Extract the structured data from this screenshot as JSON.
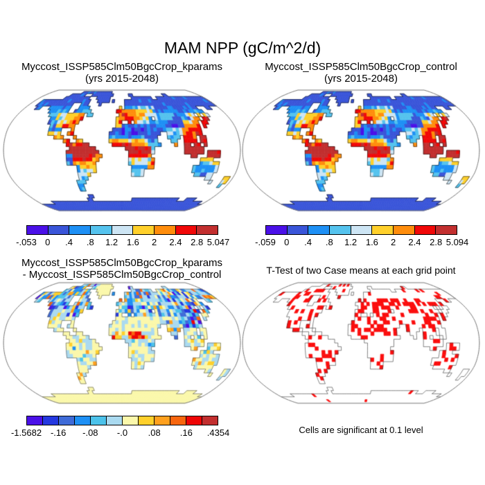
{
  "page": {
    "background": "#ffffff"
  },
  "main_title": "MAM NPP (gC/m^2/d)",
  "panels": {
    "kparams": {
      "title_line1": "Myccost_ISSP585Clm50BgcCrop_kparams",
      "title_line2": "(yrs 2015-2048)"
    },
    "control": {
      "title_line1": "Myccost_ISSP585Clm50BgcCrop_control",
      "title_line2": "(yrs 2015-2048)"
    },
    "diff": {
      "title_line1": "Myccost_ISSP585Clm50BgcCrop_kparams",
      "title_line2": "- Myccost_ISSP585Clm50BgcCrop_control"
    },
    "ttest": {
      "title": "T-Test of two Case means at each grid point",
      "caption": "Cells are significant at 0.1 level"
    }
  },
  "chart_data": {
    "type": "heatmap",
    "projection": "robinson",
    "season": "MAM",
    "variable": "NPP",
    "units": "gC/m^2/d",
    "panels": [
      {
        "id": "kparams",
        "kind": "filled_global_map",
        "map_title": "Myccost_ISSP585Clm50BgcCrop_kparams (yrs 2015-2048)",
        "levels": [
          -0.053,
          0,
          0.4,
          0.8,
          1.2,
          1.6,
          2.0,
          2.4,
          2.8,
          5.047
        ],
        "level_labels": [
          "-.053",
          "0",
          ".4",
          ".8",
          "1.2",
          "1.6",
          "2",
          "2.4",
          "2.8",
          "5.047"
        ],
        "label_positions": [
          0,
          1,
          2,
          3,
          4,
          5,
          6,
          7,
          8,
          9
        ],
        "colors": [
          "#4a10e8",
          "#3a55d9",
          "#1e90f5",
          "#55c3ee",
          "#cde5f4",
          "#ffd02b",
          "#ff8d0c",
          "#f10808",
          "#c22f2f"
        ]
      },
      {
        "id": "control",
        "kind": "filled_global_map",
        "map_title": "Myccost_ISSP585Clm50BgcCrop_control (yrs 2015-2048)",
        "levels": [
          -0.059,
          0,
          0.4,
          0.8,
          1.2,
          1.6,
          2.0,
          2.4,
          2.8,
          5.094
        ],
        "level_labels": [
          "-.059",
          "0",
          ".4",
          ".8",
          "1.2",
          "1.6",
          "2",
          "2.4",
          "2.8",
          "5.094"
        ],
        "label_positions": [
          0,
          1,
          2,
          3,
          4,
          5,
          6,
          7,
          8,
          9
        ],
        "colors": [
          "#4a10e8",
          "#3a55d9",
          "#1e90f5",
          "#55c3ee",
          "#cde5f4",
          "#ffd02b",
          "#ff8d0c",
          "#f10808",
          "#c22f2f"
        ]
      },
      {
        "id": "diff",
        "kind": "filled_global_map_difference",
        "map_title": "Myccost_ISSP585Clm50BgcCrop_kparams - Myccost_ISSP585Clm50BgcCrop_control",
        "levels": [
          -1.5682,
          -0.2,
          -0.16,
          -0.12,
          -0.08,
          -0.04,
          0,
          0.04,
          0.08,
          0.12,
          0.16,
          0.2,
          0.4354
        ],
        "level_labels": [
          "-1.5682",
          "-.16",
          "-.08",
          "-.0",
          ".08",
          ".16",
          ".4354"
        ],
        "label_positions": [
          0,
          2,
          4,
          6,
          8,
          10,
          12
        ],
        "colors": [
          "#4a10e8",
          "#2438e0",
          "#3f6bd8",
          "#1e90f5",
          "#4cc2ea",
          "#aadaf0",
          "#fbf8ab",
          "#ffd02b",
          "#ffa01e",
          "#f8660e",
          "#ee0505",
          "#c22f2f"
        ]
      },
      {
        "id": "ttest",
        "kind": "significance_map",
        "map_title": "T-Test of two Case means at each grid point",
        "note": "Cells are significant at 0.1 level",
        "significant_color": "#fb0d0d"
      }
    ]
  },
  "map_render": {
    "cols": 72,
    "rows": 36,
    "cell_deg": 5,
    "ocean_color": "#ffffff",
    "coast_colors": {
      "kparams": "#111111",
      "control": "#111111",
      "diff": "#4a4a4a",
      "ttest": "#333333"
    },
    "boundary_color": "#777777",
    "land_segments": [
      [
        1,
        16,
        30,
        1
      ],
      [
        2,
        12,
        18,
        1
      ],
      [
        2,
        22,
        31,
        1
      ],
      [
        2,
        39,
        40,
        1
      ],
      [
        2,
        55,
        56,
        1
      ],
      [
        3,
        11,
        21,
        1
      ],
      [
        3,
        25,
        30,
        1
      ],
      [
        3,
        40,
        48,
        1
      ],
      [
        3,
        51,
        71,
        1
      ],
      [
        4,
        3,
        22,
        1
      ],
      [
        4,
        26,
        30,
        1
      ],
      [
        4,
        32,
        32,
        1
      ],
      [
        4,
        37,
        71,
        1
      ],
      [
        5,
        3,
        16,
        1
      ],
      [
        5,
        20,
        22,
        1
      ],
      [
        5,
        27,
        27,
        1
      ],
      [
        5,
        37,
        71,
        1
      ],
      [
        6,
        4,
        5,
        1
      ],
      [
        6,
        9,
        16,
        2
      ],
      [
        6,
        20,
        23,
        2
      ],
      [
        6,
        35,
        35,
        5
      ],
      [
        6,
        37,
        41,
        2
      ],
      [
        6,
        42,
        47,
        3
      ],
      [
        6,
        48,
        63,
        1
      ],
      [
        6,
        67,
        68,
        1
      ],
      [
        7,
        10,
        16,
        2
      ],
      [
        7,
        19,
        24,
        2
      ],
      [
        7,
        34,
        41,
        6
      ],
      [
        7,
        42,
        46,
        5
      ],
      [
        7,
        47,
        64,
        2
      ],
      [
        8,
        11,
        12,
        3
      ],
      [
        8,
        13,
        16,
        4
      ],
      [
        8,
        17,
        20,
        5
      ],
      [
        8,
        21,
        22,
        6
      ],
      [
        8,
        24,
        25,
        3
      ],
      [
        8,
        35,
        37,
        7
      ],
      [
        8,
        38,
        40,
        6
      ],
      [
        8,
        41,
        43,
        5
      ],
      [
        8,
        44,
        47,
        4
      ],
      [
        8,
        48,
        53,
        3
      ],
      [
        8,
        54,
        57,
        2
      ],
      [
        8,
        58,
        60,
        4
      ],
      [
        8,
        62,
        62,
        4
      ],
      [
        8,
        64,
        65,
        5
      ],
      [
        9,
        12,
        13,
        2
      ],
      [
        9,
        14,
        16,
        4
      ],
      [
        9,
        17,
        19,
        5
      ],
      [
        9,
        20,
        22,
        6
      ],
      [
        9,
        34,
        36,
        6
      ],
      [
        9,
        37,
        39,
        7
      ],
      [
        9,
        40,
        41,
        6
      ],
      [
        9,
        42,
        44,
        5
      ],
      [
        9,
        45,
        45,
        2
      ],
      [
        9,
        47,
        52,
        3
      ],
      [
        9,
        53,
        55,
        1
      ],
      [
        9,
        56,
        58,
        2
      ],
      [
        9,
        59,
        60,
        5
      ],
      [
        9,
        61,
        61,
        6
      ],
      [
        9,
        63,
        64,
        7
      ],
      [
        10,
        12,
        14,
        2
      ],
      [
        10,
        15,
        17,
        4
      ],
      [
        10,
        18,
        21,
        6
      ],
      [
        10,
        34,
        35,
        6
      ],
      [
        10,
        38,
        38,
        6
      ],
      [
        10,
        40,
        40,
        6
      ],
      [
        10,
        41,
        44,
        4
      ],
      [
        10,
        45,
        47,
        2
      ],
      [
        10,
        48,
        50,
        2
      ],
      [
        10,
        51,
        55,
        1
      ],
      [
        10,
        56,
        58,
        5
      ],
      [
        10,
        59,
        60,
        6
      ],
      [
        10,
        62,
        63,
        7
      ],
      [
        11,
        13,
        14,
        2
      ],
      [
        11,
        15,
        16,
        5
      ],
      [
        11,
        17,
        20,
        6
      ],
      [
        11,
        34,
        35,
        5
      ],
      [
        11,
        36,
        37,
        2
      ],
      [
        11,
        38,
        46,
        1
      ],
      [
        11,
        47,
        50,
        2
      ],
      [
        11,
        51,
        55,
        1
      ],
      [
        11,
        56,
        59,
        6
      ],
      [
        11,
        60,
        60,
        7
      ],
      [
        11,
        62,
        62,
        7
      ],
      [
        12,
        13,
        16,
        2
      ],
      [
        12,
        20,
        20,
        7
      ],
      [
        12,
        33,
        48,
        1
      ],
      [
        12,
        49,
        50,
        2
      ],
      [
        12,
        51,
        53,
        3
      ],
      [
        12,
        54,
        54,
        4
      ],
      [
        12,
        55,
        56,
        6
      ],
      [
        12,
        57,
        60,
        7
      ],
      [
        13,
        13,
        16,
        5
      ],
      [
        13,
        19,
        20,
        6
      ],
      [
        13,
        32,
        47,
        1
      ],
      [
        13,
        50,
        53,
        3
      ],
      [
        13,
        54,
        54,
        4
      ],
      [
        13,
        55,
        55,
        6
      ],
      [
        13,
        56,
        60,
        7
      ],
      [
        14,
        15,
        17,
        6
      ],
      [
        14,
        21,
        21,
        6
      ],
      [
        14,
        32,
        43,
        2
      ],
      [
        14,
        44,
        46,
        1
      ],
      [
        14,
        50,
        53,
        3
      ],
      [
        14,
        55,
        58,
        7
      ],
      [
        14,
        60,
        61,
        8
      ],
      [
        15,
        18,
        19,
        7
      ],
      [
        15,
        22,
        23,
        6
      ],
      [
        15,
        32,
        40,
        5
      ],
      [
        15,
        41,
        43,
        4
      ],
      [
        15,
        44,
        46,
        2
      ],
      [
        15,
        51,
        52,
        3
      ],
      [
        15,
        55,
        58,
        7
      ],
      [
        15,
        60,
        61,
        8
      ],
      [
        16,
        19,
        20,
        8
      ],
      [
        16,
        21,
        23,
        7
      ],
      [
        16,
        24,
        25,
        8
      ],
      [
        16,
        33,
        38,
        7
      ],
      [
        16,
        39,
        43,
        6
      ],
      [
        16,
        44,
        46,
        3
      ],
      [
        16,
        47,
        47,
        2
      ],
      [
        16,
        52,
        52,
        7
      ],
      [
        16,
        55,
        56,
        8
      ],
      [
        16,
        58,
        59,
        8
      ],
      [
        16,
        61,
        61,
        8
      ],
      [
        17,
        20,
        27,
        8
      ],
      [
        17,
        37,
        44,
        8
      ],
      [
        17,
        45,
        45,
        3
      ],
      [
        17,
        55,
        60,
        8
      ],
      [
        18,
        19,
        28,
        8
      ],
      [
        18,
        38,
        44,
        8
      ],
      [
        18,
        45,
        45,
        4
      ],
      [
        18,
        55,
        60,
        8
      ],
      [
        18,
        62,
        65,
        8
      ],
      [
        19,
        19,
        20,
        2
      ],
      [
        19,
        21,
        27,
        8
      ],
      [
        19,
        28,
        29,
        6
      ],
      [
        19,
        38,
        44,
        7
      ],
      [
        19,
        57,
        58,
        8
      ],
      [
        19,
        62,
        65,
        8
      ],
      [
        20,
        19,
        20,
        2
      ],
      [
        20,
        21,
        26,
        7
      ],
      [
        20,
        27,
        28,
        6
      ],
      [
        20,
        38,
        44,
        4
      ],
      [
        20,
        45,
        45,
        6
      ],
      [
        20,
        60,
        63,
        5
      ],
      [
        21,
        19,
        20,
        2
      ],
      [
        21,
        21,
        27,
        6
      ],
      [
        21,
        38,
        43,
        4
      ],
      [
        21,
        44,
        45,
        6
      ],
      [
        21,
        60,
        62,
        3
      ],
      [
        21,
        63,
        65,
        5
      ],
      [
        22,
        22,
        22,
        1
      ],
      [
        22,
        23,
        27,
        5
      ],
      [
        22,
        39,
        43,
        2
      ],
      [
        22,
        44,
        45,
        6
      ],
      [
        22,
        58,
        64,
        2
      ],
      [
        22,
        65,
        65,
        4
      ],
      [
        23,
        22,
        22,
        2
      ],
      [
        23,
        23,
        26,
        4
      ],
      [
        23,
        27,
        27,
        5
      ],
      [
        23,
        39,
        42,
        3
      ],
      [
        23,
        58,
        64,
        2
      ],
      [
        23,
        65,
        65,
        4
      ],
      [
        24,
        22,
        22,
        3
      ],
      [
        24,
        23,
        25,
        4
      ],
      [
        24,
        39,
        42,
        3
      ],
      [
        24,
        59,
        60,
        3
      ],
      [
        24,
        61,
        62,
        1
      ],
      [
        24,
        63,
        64,
        4
      ],
      [
        25,
        22,
        24,
        3
      ],
      [
        25,
        63,
        64,
        4
      ],
      [
        25,
        69,
        70,
        4
      ],
      [
        26,
        21,
        23,
        3
      ],
      [
        26,
        65,
        65,
        4
      ],
      [
        26,
        69,
        70,
        4
      ],
      [
        27,
        21,
        22,
        2
      ],
      [
        27,
        69,
        69,
        3
      ],
      [
        28,
        21,
        22,
        2
      ],
      [
        30,
        23,
        24,
        1
      ],
      [
        31,
        22,
        23,
        1
      ],
      [
        31,
        40,
        58,
        1
      ],
      [
        31,
        62,
        65,
        1
      ],
      [
        32,
        6,
        69,
        1
      ],
      [
        33,
        0,
        71,
        1
      ],
      [
        34,
        0,
        71,
        1
      ],
      [
        35,
        0,
        71,
        1
      ]
    ]
  }
}
